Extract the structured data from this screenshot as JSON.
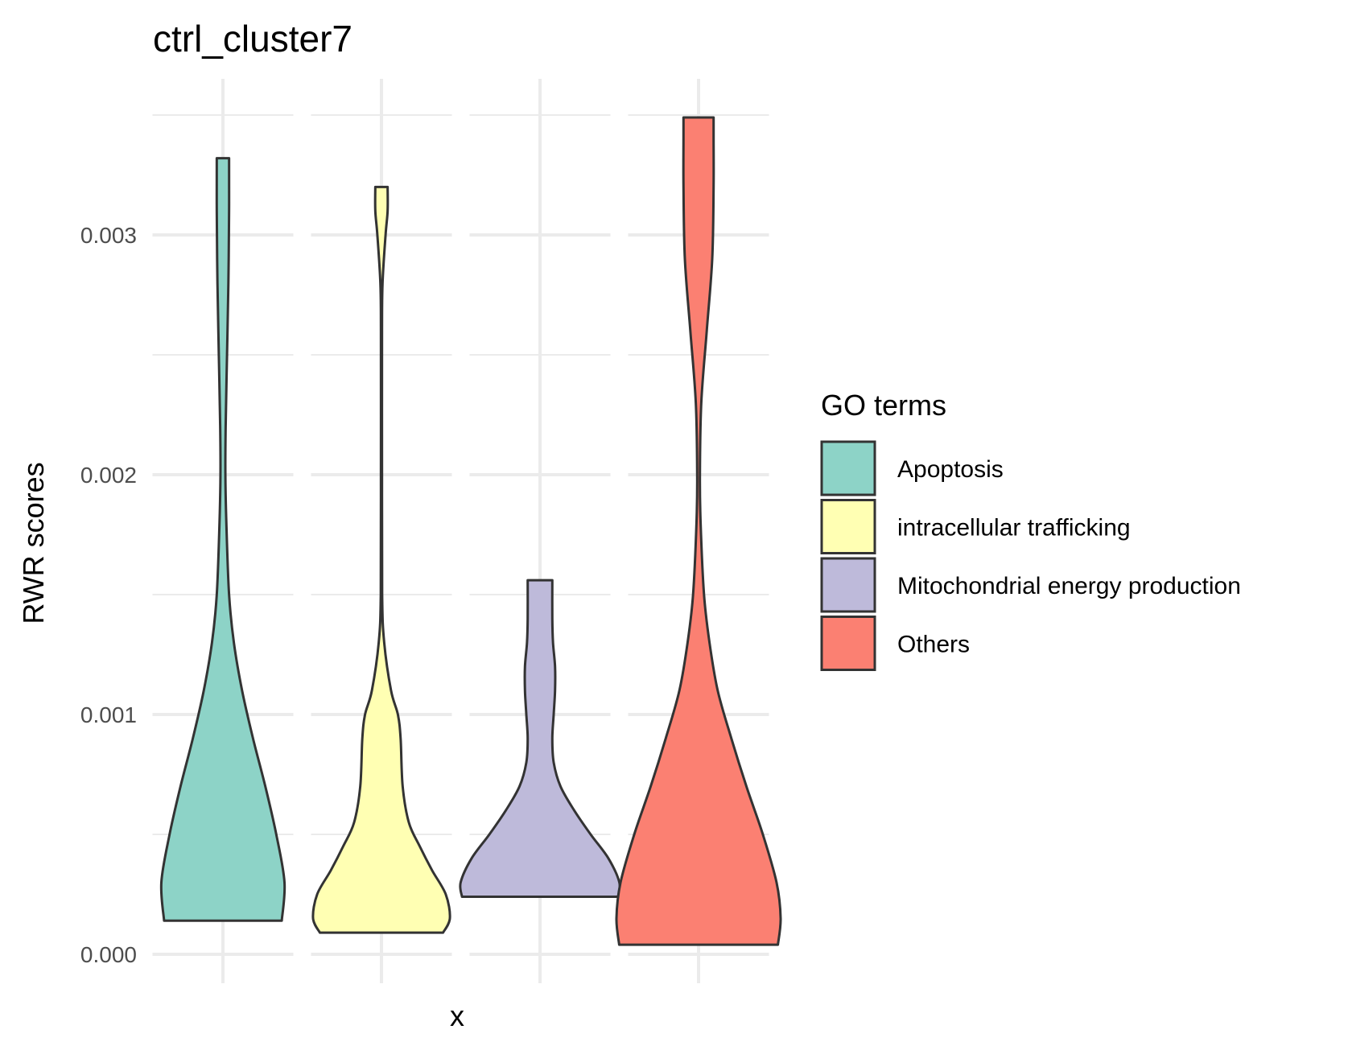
{
  "chart_data": {
    "type": "violin",
    "title": "ctrl_cluster7",
    "xlabel": "x",
    "ylabel": "RWR scores",
    "ylim": [
      0,
      0.0036
    ],
    "yticks": [
      0,
      0.001,
      0.002,
      0.003
    ],
    "ytick_labels": [
      "0.000",
      "0.001",
      "0.002",
      "0.003"
    ],
    "grid": true,
    "legend": {
      "title": "GO terms",
      "position": "right"
    },
    "series": [
      {
        "name": "Apoptosis",
        "color": "#8dd3c7",
        "min": 0.00014,
        "max": 0.00332,
        "density": [
          [
            0.00014,
            0.43
          ],
          [
            0.0003,
            0.45
          ],
          [
            0.0005,
            0.39
          ],
          [
            0.0007,
            0.31
          ],
          [
            0.0009,
            0.22
          ],
          [
            0.0011,
            0.14
          ],
          [
            0.0013,
            0.08
          ],
          [
            0.0015,
            0.045
          ],
          [
            0.0018,
            0.025
          ],
          [
            0.002,
            0.018
          ],
          [
            0.0022,
            0.02
          ],
          [
            0.0025,
            0.03
          ],
          [
            0.0028,
            0.04
          ],
          [
            0.0031,
            0.045
          ],
          [
            0.00332,
            0.045
          ]
        ]
      },
      {
        "name": "intracellular trafficking",
        "color": "#ffffb3",
        "min": 9e-05,
        "max": 0.0032,
        "density": [
          [
            9e-05,
            0.45
          ],
          [
            0.00015,
            0.5
          ],
          [
            0.00025,
            0.47
          ],
          [
            0.00035,
            0.37
          ],
          [
            0.00045,
            0.28
          ],
          [
            0.00055,
            0.2
          ],
          [
            0.0007,
            0.155
          ],
          [
            0.0009,
            0.14
          ],
          [
            0.001,
            0.12
          ],
          [
            0.0011,
            0.07
          ],
          [
            0.0013,
            0.02
          ],
          [
            0.0015,
            0.005
          ],
          [
            0.002,
            0.004
          ],
          [
            0.0026,
            0.004
          ],
          [
            0.0028,
            0.008
          ],
          [
            0.003,
            0.03
          ],
          [
            0.0031,
            0.045
          ],
          [
            0.0032,
            0.045
          ]
        ]
      },
      {
        "name": "Mitochondrial energy production",
        "color": "#bebada",
        "min": 0.00024,
        "max": 0.00156,
        "density": [
          [
            0.00024,
            0.57
          ],
          [
            0.0003,
            0.58
          ],
          [
            0.0004,
            0.5
          ],
          [
            0.0005,
            0.37
          ],
          [
            0.0006,
            0.25
          ],
          [
            0.0007,
            0.15
          ],
          [
            0.0008,
            0.1
          ],
          [
            0.0009,
            0.09
          ],
          [
            0.001,
            0.1
          ],
          [
            0.0011,
            0.11
          ],
          [
            0.0012,
            0.11
          ],
          [
            0.0013,
            0.095
          ],
          [
            0.0014,
            0.09
          ],
          [
            0.00156,
            0.09
          ]
        ]
      },
      {
        "name": "Others",
        "color": "#fb8072",
        "min": 4e-05,
        "max": 0.00349,
        "density": [
          [
            4e-05,
            0.58
          ],
          [
            0.00015,
            0.6
          ],
          [
            0.0003,
            0.57
          ],
          [
            0.0005,
            0.47
          ],
          [
            0.0007,
            0.35
          ],
          [
            0.0009,
            0.24
          ],
          [
            0.0011,
            0.14
          ],
          [
            0.0013,
            0.08
          ],
          [
            0.0015,
            0.04
          ],
          [
            0.0018,
            0.015
          ],
          [
            0.002,
            0.01
          ],
          [
            0.0023,
            0.02
          ],
          [
            0.0026,
            0.06
          ],
          [
            0.0029,
            0.1
          ],
          [
            0.0032,
            0.11
          ],
          [
            0.0034,
            0.11
          ],
          [
            0.00349,
            0.11
          ]
        ]
      }
    ]
  }
}
